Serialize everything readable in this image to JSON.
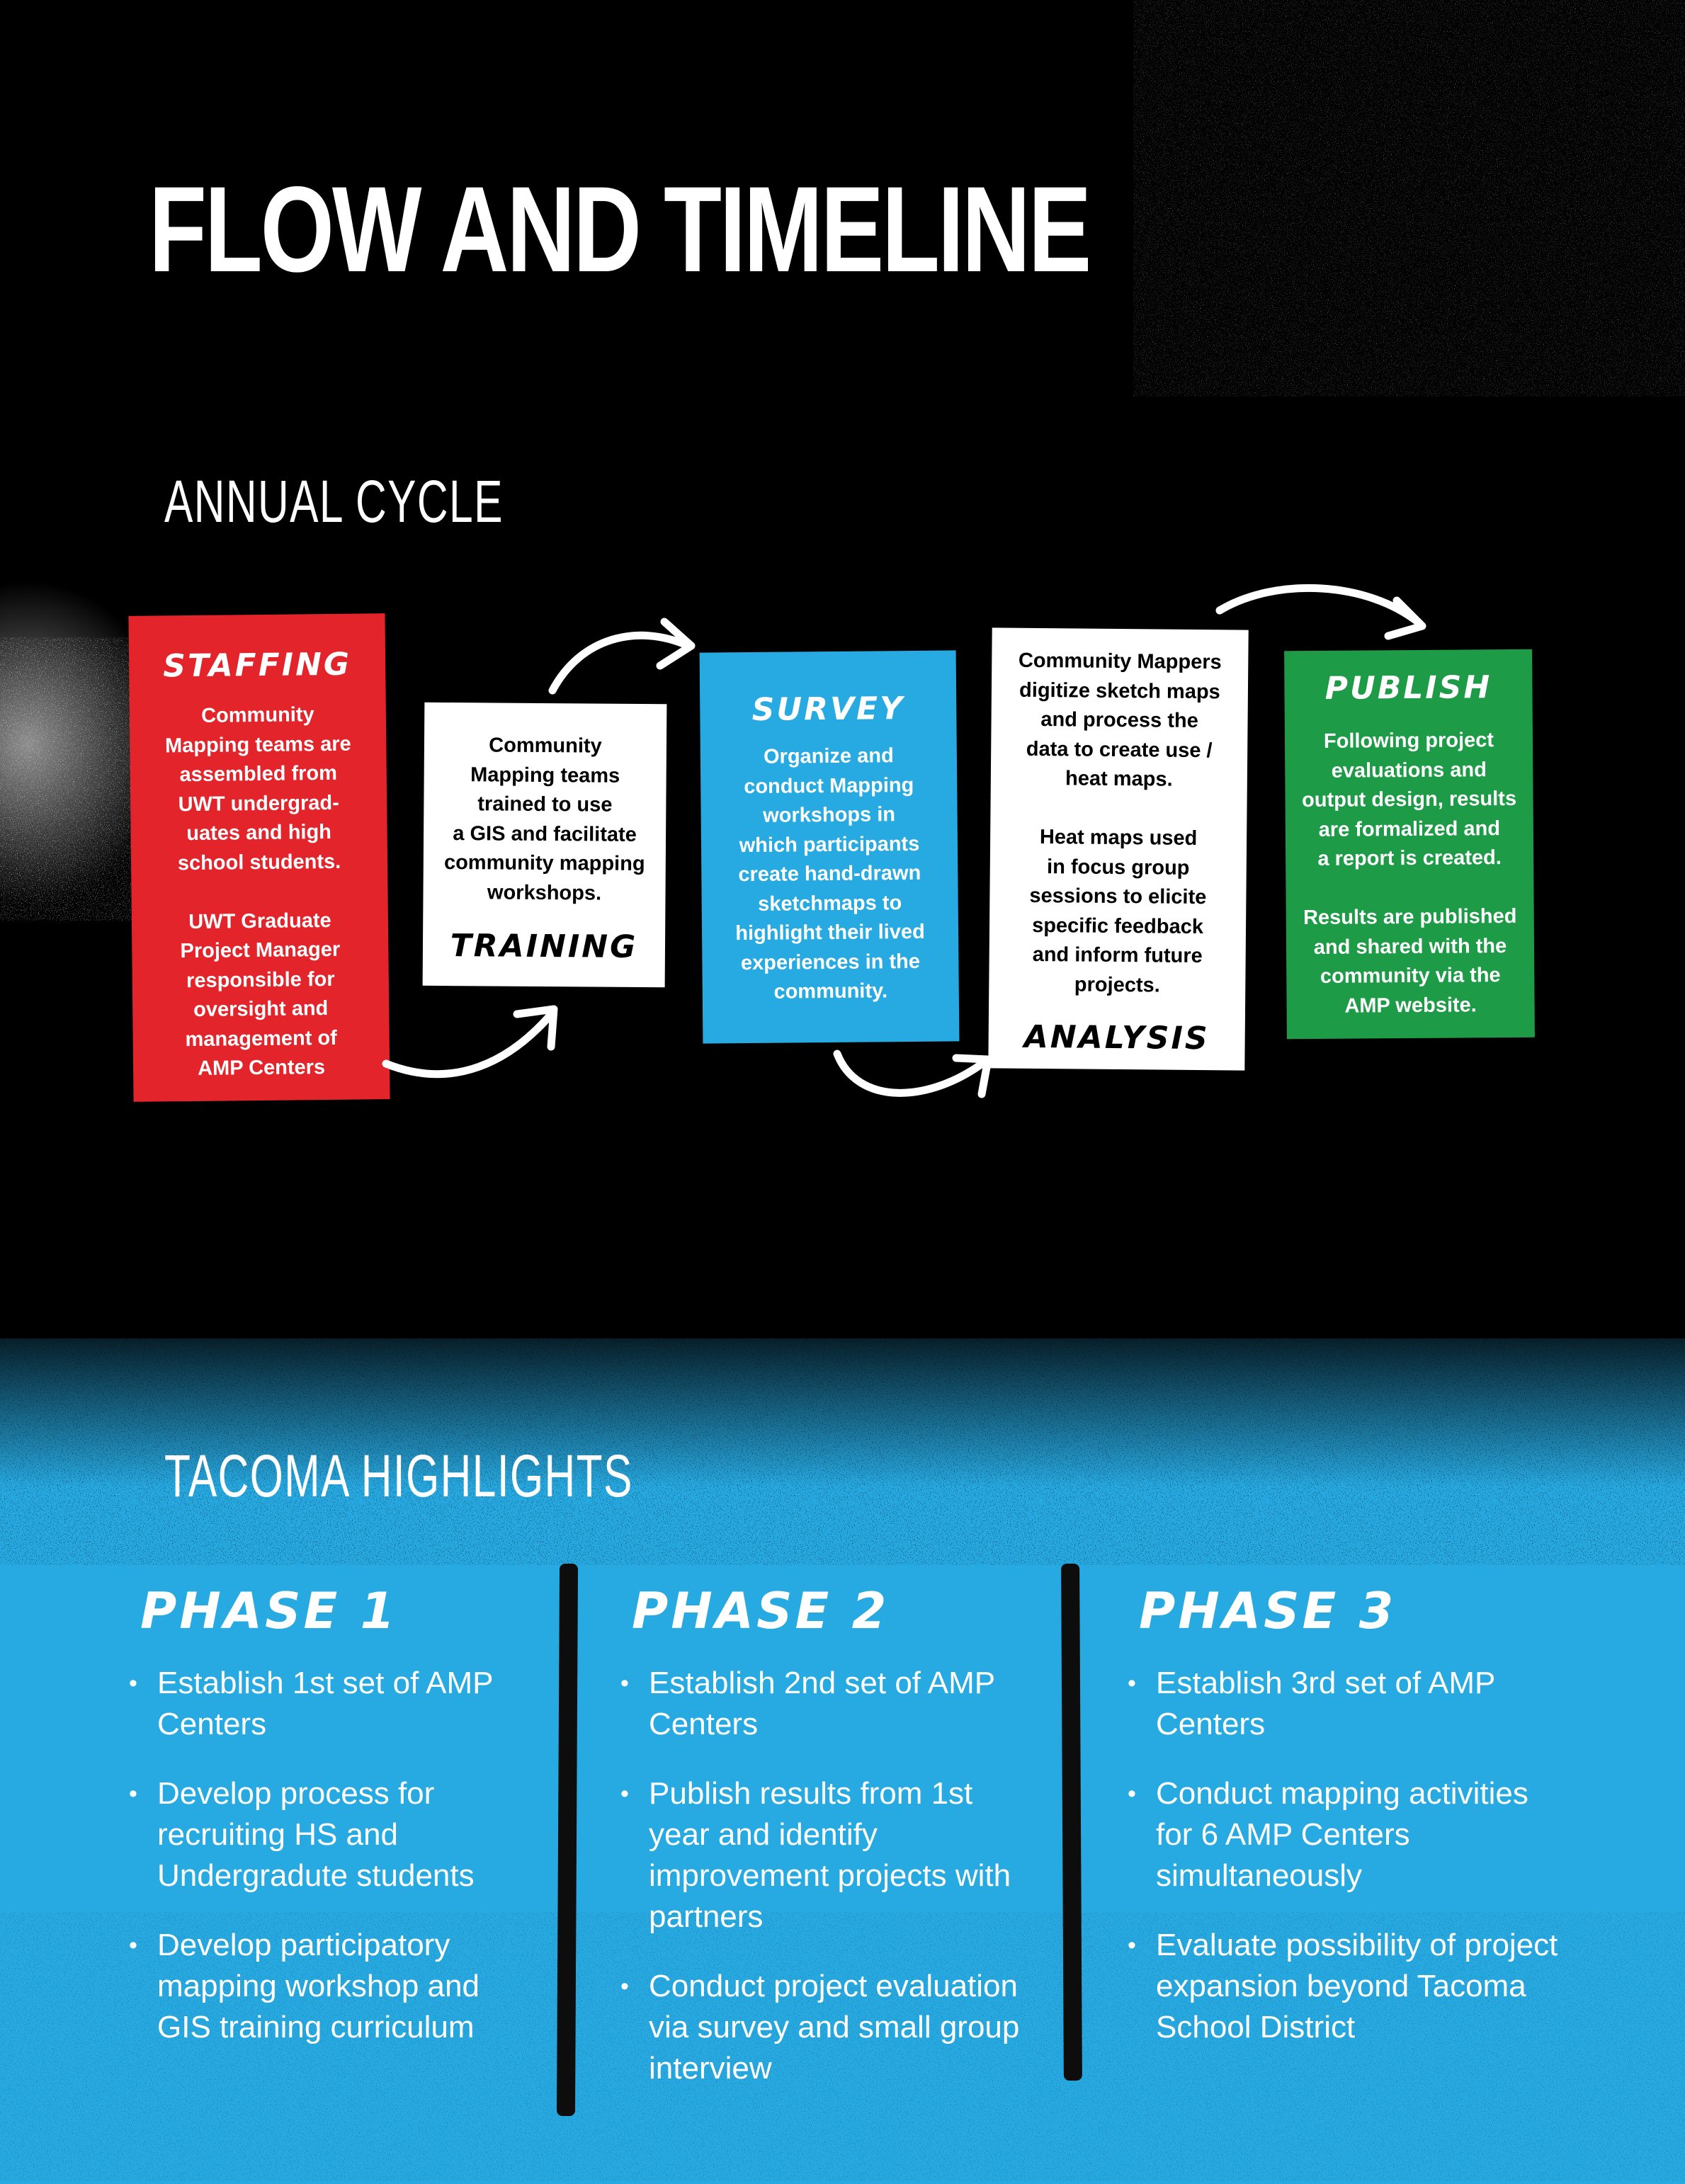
{
  "page": {
    "title": "FLOW AND TIMELINE"
  },
  "annual_cycle": {
    "title": "ANNUAL CYCLE",
    "steps": [
      {
        "label": "STAFFING",
        "text": "Community\nMapping teams are\nassembled from\nUWT undergrad-\nuates and high\nschool students.\n\nUWT Graduate\nProject Manager\nresponsible for\noversight and\nmanagement of\nAMP Centers",
        "color": "#e3242b"
      },
      {
        "label": "TRAINING",
        "text": "Community\nMapping teams\ntrained to use\na GIS and facilitate\ncommunity mapping\nworkshops.",
        "color": "#ffffff"
      },
      {
        "label": "SURVEY",
        "text": "Organize and\nconduct Mapping\nworkshops in\nwhich participants\ncreate hand-drawn\nsketchmaps to\nhighlight their lived\nexperiences in the\ncommunity.",
        "color": "#27a9e1"
      },
      {
        "label": "ANALYSIS",
        "text": "Community Mappers\ndigitize sketch maps\nand process the\ndata to create use /\nheat maps.\n\nHeat maps used\nin focus group\nsessions to elicite\nspecific feedback\nand inform future\nprojects.",
        "color": "#ffffff"
      },
      {
        "label": "PUBLISH",
        "text": "Following project\nevaluations and\noutput design, results\nare formalized and\na report is created.\n\nResults are published\nand shared with the\ncommunity via the\nAMP website.",
        "color": "#1e9b46"
      }
    ]
  },
  "tacoma_highlights": {
    "title": "TACOMA HIGHLIGHTS",
    "phases": [
      {
        "title": "PHASE 1",
        "items": [
          "Establish 1st set of AMP Centers",
          "Develop process for recruiting HS and Undergradute students",
          "Develop participatory mapping workshop and GIS training curriculum"
        ]
      },
      {
        "title": "PHASE 2",
        "items": [
          "Establish 2nd set of AMP Centers",
          "Publish results from 1st year and identify improvement projects with partners",
          "Conduct project evaluation via survey and small group interview"
        ]
      },
      {
        "title": "PHASE 3",
        "items": [
          "Establish 3rd set of AMP Centers",
          "Conduct mapping activities for 6 AMP Centers simultaneously",
          "Evaluate possibility of project expansion beyond Tacoma School District"
        ]
      }
    ]
  },
  "colors": {
    "background": "#000000",
    "blue": "#27a9e1",
    "red": "#e3242b",
    "green": "#1e9b46",
    "text": "#ffffff"
  }
}
